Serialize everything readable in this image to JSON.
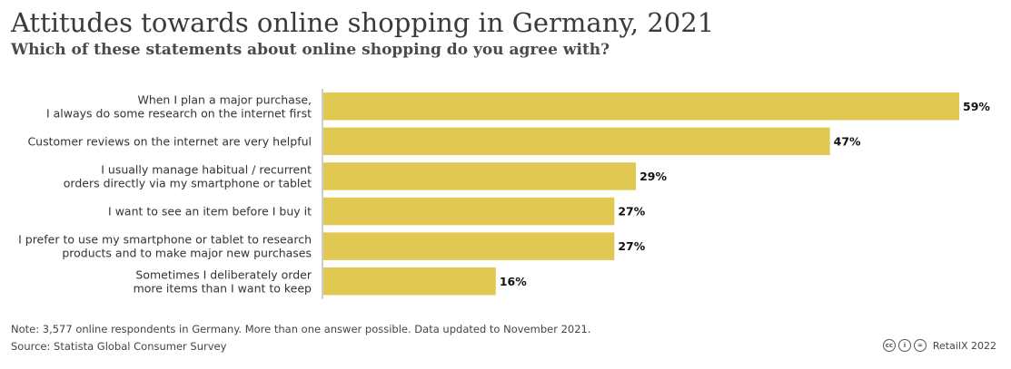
{
  "header": {
    "title": "Attitudes towards online shopping in Germany, 2021",
    "subtitle": "Which of these statements about online shopping do you agree with?"
  },
  "chart_data": {
    "type": "bar",
    "orientation": "horizontal",
    "categories": [
      [
        "When I plan a major purchase,",
        "I always do some research on the internet first"
      ],
      [
        "Customer reviews on the internet are very helpful"
      ],
      [
        "I usually manage habitual / recurrent",
        "orders directly via my smartphone or tablet"
      ],
      [
        "I want to see an item before I buy it"
      ],
      [
        "I prefer to use my smartphone or tablet to research",
        "products and to make major new purchases"
      ],
      [
        "Sometimes I deliberately order",
        "more items than I want to keep"
      ]
    ],
    "values": [
      59,
      47,
      29,
      27,
      27,
      16
    ],
    "value_labels": [
      "59%",
      "47%",
      "29%",
      "27%",
      "27%",
      "16%"
    ],
    "xlim": [
      0,
      59
    ],
    "grid": false,
    "bar_color": "#e0c853"
  },
  "footer": {
    "note": "Note: 3,577 online respondents in Germany. More than one answer possible. Data updated to November 2021.",
    "source": "Source: Statista Global Consumer Survey",
    "credit": "RetailX 2022",
    "license_icons": [
      "cc-icon",
      "by-icon",
      "equals-icon"
    ]
  },
  "colors": {
    "bar": "#e0c853",
    "axis": "#bbbbbb"
  }
}
